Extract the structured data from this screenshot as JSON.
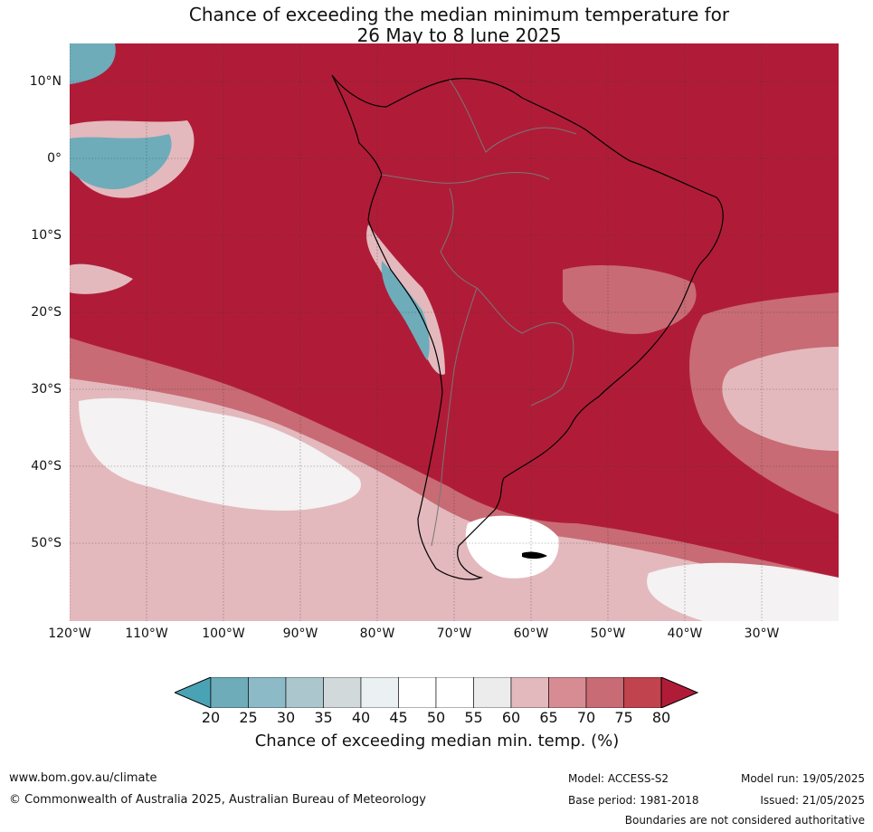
{
  "title": {
    "line1": "Chance of exceeding the median minimum temperature for",
    "line2": "26 May to 8 June 2025"
  },
  "map": {
    "lat_labels": [
      "10°N",
      "0°",
      "10°S",
      "20°S",
      "30°S",
      "40°S",
      "50°S"
    ],
    "lon_labels": [
      "120°W",
      "110°W",
      "100°W",
      "90°W",
      "80°W",
      "70°W",
      "60°W",
      "50°W",
      "40°W",
      "30°W"
    ],
    "dominant_color": "#b01c38"
  },
  "colorbar": {
    "ticks": [
      "20",
      "25",
      "30",
      "35",
      "40",
      "45",
      "50",
      "55",
      "60",
      "65",
      "70",
      "75",
      "80"
    ],
    "colors": [
      "#4aa3b5",
      "#6eacba",
      "#8cbac7",
      "#abc7cd",
      "#d2d9db",
      "#ebf0f2",
      "#ffffff",
      "#ffffff",
      "#ececec",
      "#e3b9bd",
      "#d78c93",
      "#c86b74",
      "#c0434e",
      "#b01c38"
    ],
    "label": "Chance of exceeding median min. temp. (%)"
  },
  "footer": {
    "website": "www.bom.gov.au/climate",
    "copyright": "© Commonwealth of Australia 2025, Australian Bureau of Meteorology",
    "model": "Model: ACCESS-S2",
    "base_period": "Base period: 1981-2018",
    "model_run": "Model run: 19/05/2025",
    "issued": "Issued: 21/05/2025",
    "disclaimer": "Boundaries are not considered authoritative"
  }
}
